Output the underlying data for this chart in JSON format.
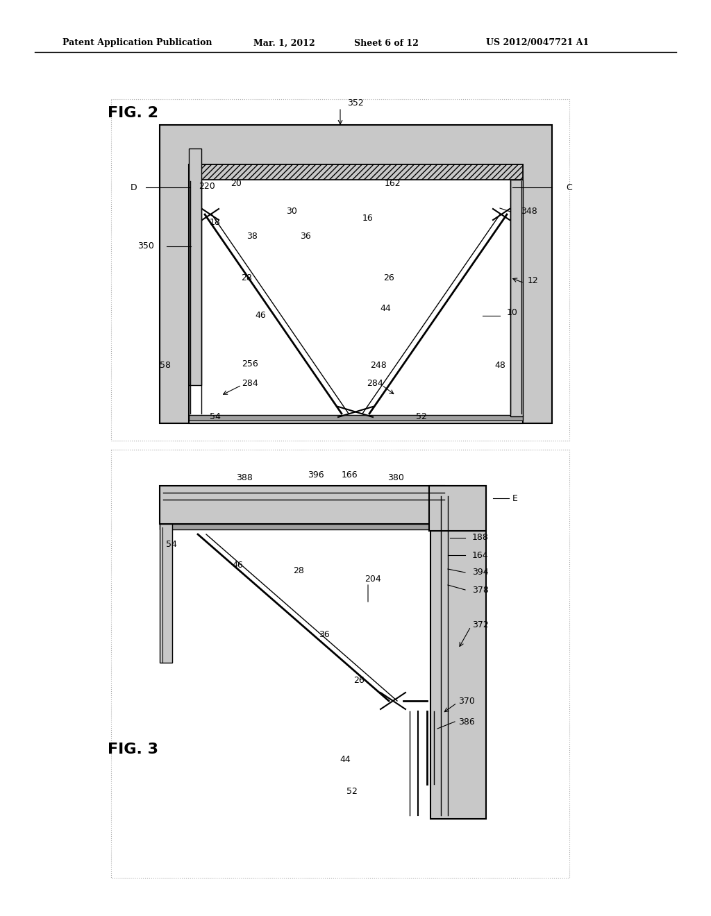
{
  "bg_color": "#ffffff",
  "header_text": "Patent Application Publication",
  "header_date": "Mar. 1, 2012",
  "header_sheet": "Sheet 6 of 12",
  "header_patent": "US 2012/0047721 A1",
  "fig2_label": "FIG. 2",
  "fig3_label": "FIG. 3",
  "gray_light": "#c8c8c8",
  "gray_medium": "#a0a0a0",
  "gray_dark": "#707070",
  "black": "#000000",
  "white": "#ffffff"
}
